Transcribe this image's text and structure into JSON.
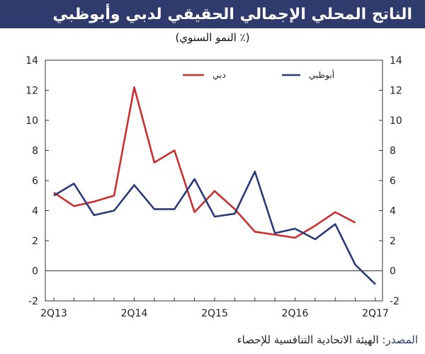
{
  "header": {
    "title": "الناتج المحلي الإجمالي الحقيقي لدبي وأبوظبي",
    "subtitle": "(٪ النمو السنوي)"
  },
  "source": {
    "label": "المصدر:",
    "text": "الهيئة الاتحادية التنافسية للإحصاء"
  },
  "colors": {
    "header_bg": "#2f3a6d",
    "dubai": "#c8312f",
    "abudhabi": "#2b3a78"
  },
  "chart_data": {
    "type": "line",
    "x": [
      "2Q13",
      "3Q13",
      "4Q13",
      "1Q14",
      "2Q14",
      "3Q14",
      "4Q14",
      "1Q15",
      "2Q15",
      "3Q15",
      "4Q15",
      "1Q16",
      "2Q16",
      "3Q16",
      "4Q16",
      "1Q17",
      "2Q17"
    ],
    "x_tick_labels": [
      "2Q13",
      "2Q14",
      "2Q15",
      "2Q16",
      "2Q17"
    ],
    "series": [
      {
        "name": "دبي",
        "color": "#c8312f",
        "values": [
          5.2,
          4.3,
          4.6,
          5.0,
          12.2,
          7.2,
          8.0,
          3.9,
          5.3,
          4.1,
          2.6,
          2.4,
          2.2,
          3.0,
          3.9,
          3.2,
          null
        ]
      },
      {
        "name": "أبوظبي",
        "color": "#2b3a78",
        "values": [
          5.0,
          5.8,
          3.7,
          4.0,
          5.7,
          4.1,
          4.1,
          6.1,
          3.6,
          3.8,
          6.6,
          2.5,
          2.8,
          2.1,
          3.1,
          0.4,
          -0.9
        ]
      }
    ],
    "ylim": [
      -2,
      14
    ],
    "y_ticks": [
      -2,
      0,
      2,
      4,
      6,
      8,
      10,
      12,
      14
    ],
    "grid": false,
    "legend_position": "top",
    "dual_axis_labels": true
  }
}
